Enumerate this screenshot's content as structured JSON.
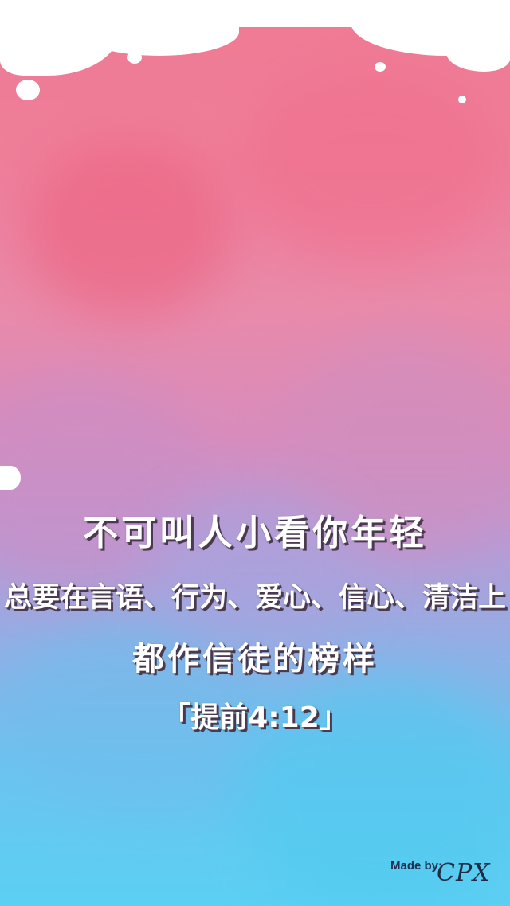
{
  "verse": {
    "line1": "不可叫人小看你年轻",
    "line2": "总要在言语、行为、爱心、信心、清洁上",
    "line3": "都作信徒的榜样",
    "reference": "「提前4:12」"
  },
  "credit": {
    "label": "Made by:",
    "signature": "CPX"
  },
  "colors": {
    "top": "#f07a93",
    "middle": "#d88cbc",
    "bottom": "#5bd0f2",
    "text": "#ffffff",
    "text_shadow": "#4a3a4f"
  }
}
